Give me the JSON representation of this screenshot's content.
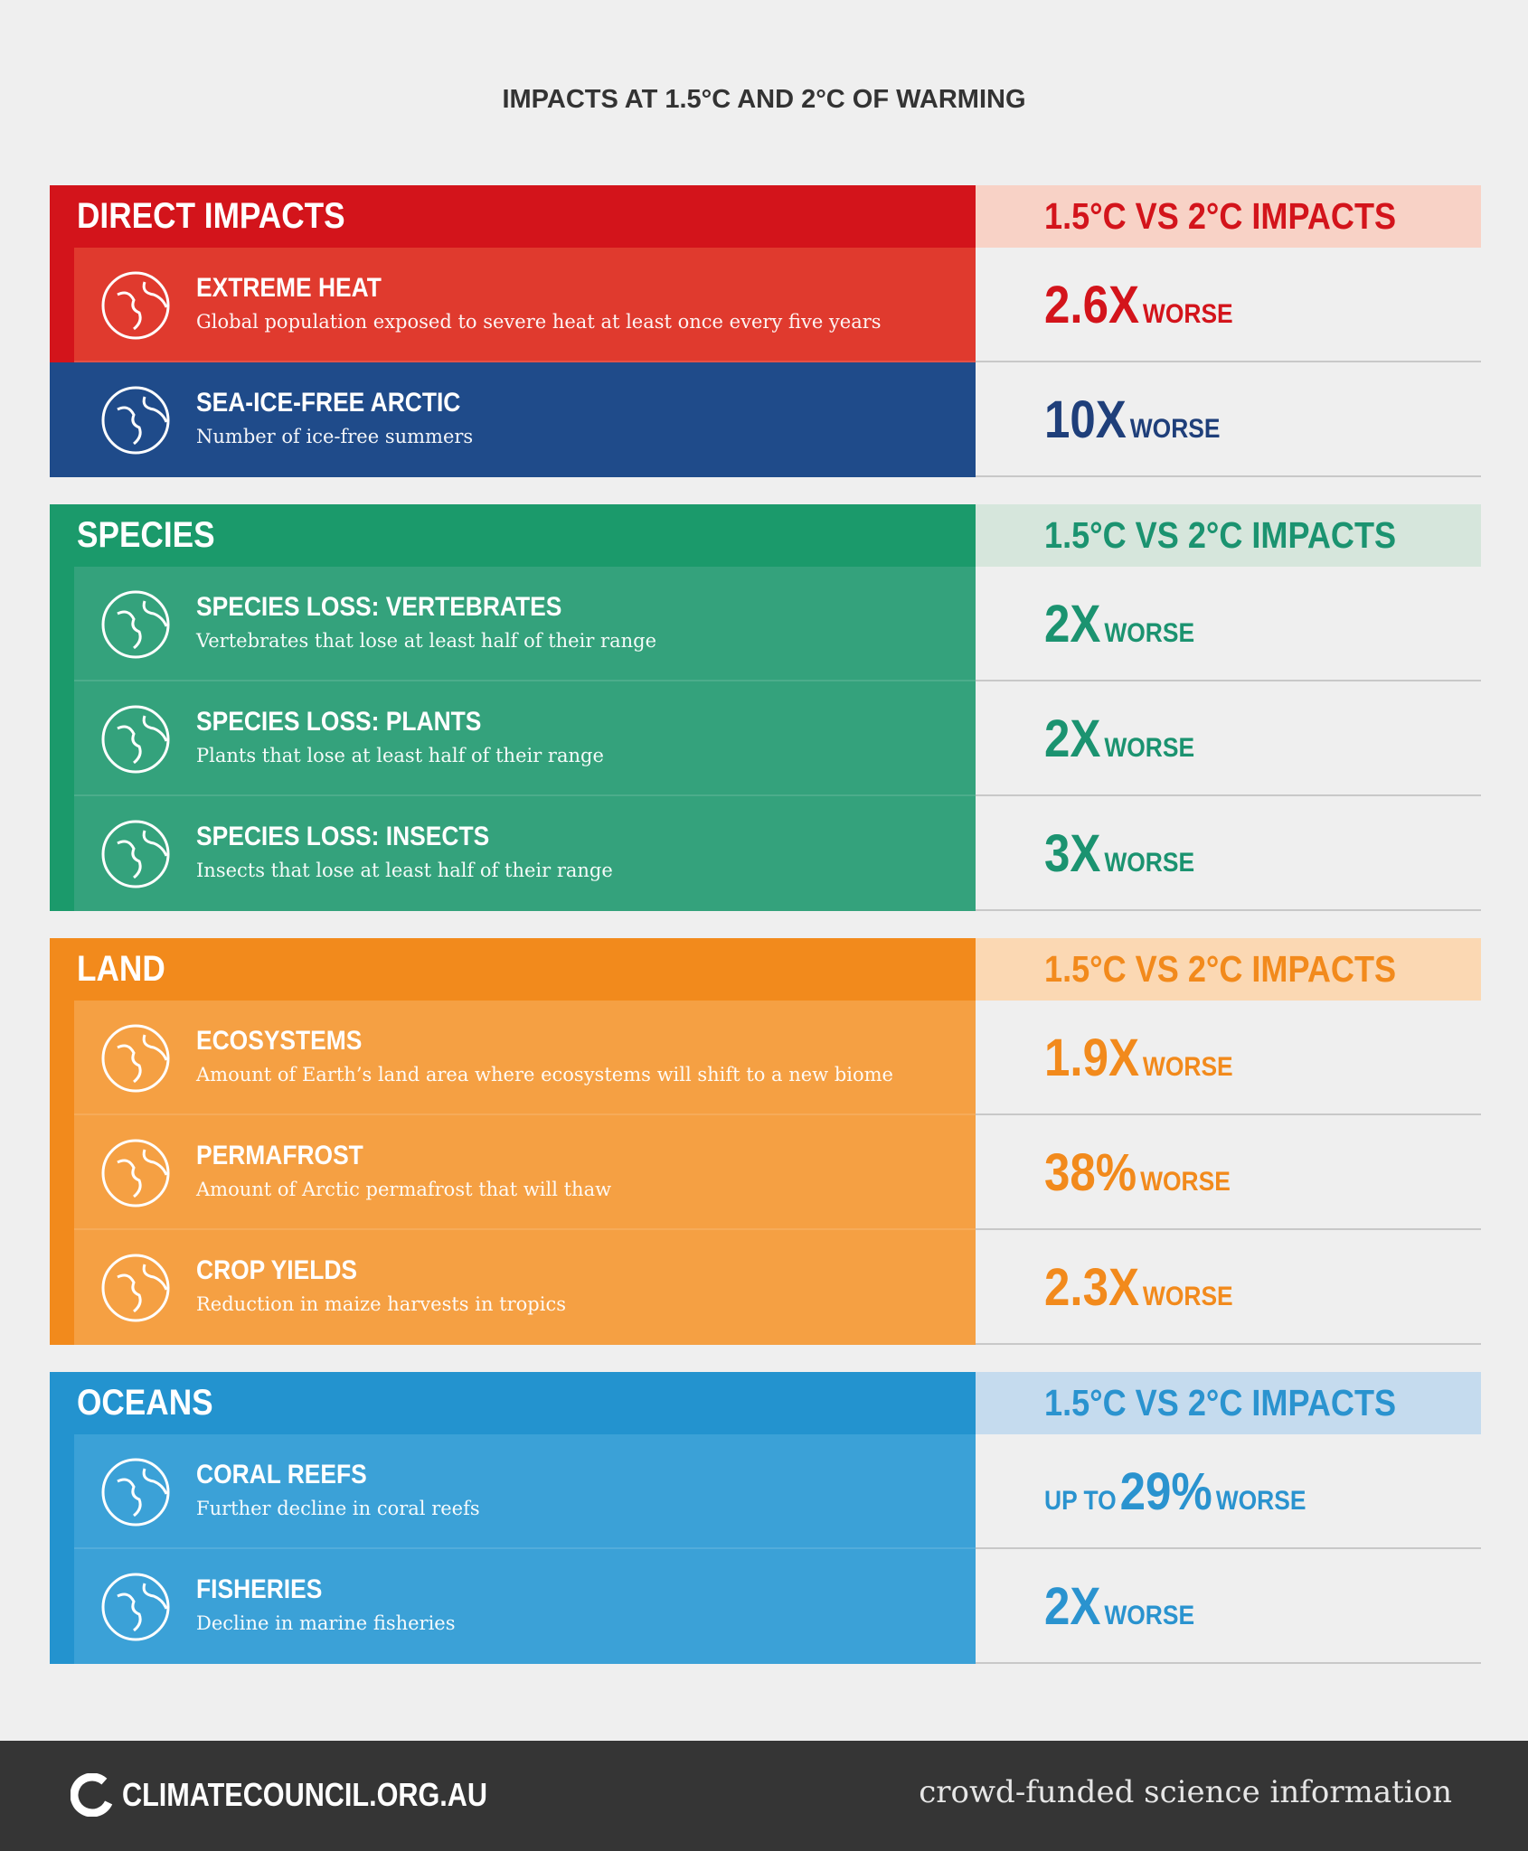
{
  "header": {
    "title": "IMPACTS AT 1.5°C AND 2°C OF WARMING"
  },
  "sections": [
    {
      "title": "DIRECT IMPACTS",
      "compare_heading": "1.5°C VS 2°C IMPACTS",
      "rows": [
        {
          "title": "EXTREME HEAT",
          "description": "Global population exposed to severe heat at least once every five years",
          "value": "2.6X",
          "suffix": "WORSE"
        },
        {
          "title": "SEA-ICE-FREE ARCTIC",
          "description": "Number of ice-free summers",
          "value": "10X",
          "suffix": "WORSE"
        }
      ]
    },
    {
      "title": "SPECIES",
      "compare_heading": "1.5°C VS 2°C IMPACTS",
      "rows": [
        {
          "title": "SPECIES LOSS: VERTEBRATES",
          "description": "Vertebrates that lose at least half of their range",
          "value": "2X",
          "suffix": "WORSE"
        },
        {
          "title": "SPECIES LOSS: PLANTS",
          "description": "Plants that lose at least half of their range",
          "value": "2X",
          "suffix": "WORSE"
        },
        {
          "title": "SPECIES LOSS: INSECTS",
          "description": "Insects that lose at least half of their range",
          "value": "3X",
          "suffix": "WORSE"
        }
      ]
    },
    {
      "title": "LAND",
      "compare_heading": "1.5°C VS 2°C IMPACTS",
      "rows": [
        {
          "title": "ECOSYSTEMS",
          "description": "Amount of Earth’s land area where ecosystems will shift to a new biome",
          "value": "1.9X",
          "suffix": "WORSE"
        },
        {
          "title": "PERMAFROST",
          "description": "Amount of Arctic permafrost that will thaw",
          "value": "38%",
          "suffix": "WORSE"
        },
        {
          "title": "CROP YIELDS",
          "description": "Reduction in maize harvests in tropics",
          "value": "2.3X",
          "suffix": "WORSE"
        }
      ]
    },
    {
      "title": "OCEANS",
      "compare_heading": "1.5°C VS 2°C IMPACTS",
      "rows": [
        {
          "title": "CORAL REEFS",
          "description": "Further decline in coral reefs",
          "prefix": "UP TO",
          "value": "29%",
          "suffix": "WORSE"
        },
        {
          "title": "FISHERIES",
          "description": "Decline in marine fisheries",
          "value": "2X",
          "suffix": "WORSE"
        }
      ]
    }
  ],
  "footer": {
    "logo": "CLIMATECOUNCIL.ORG.AU",
    "tagline": "crowd-funded science information"
  }
}
